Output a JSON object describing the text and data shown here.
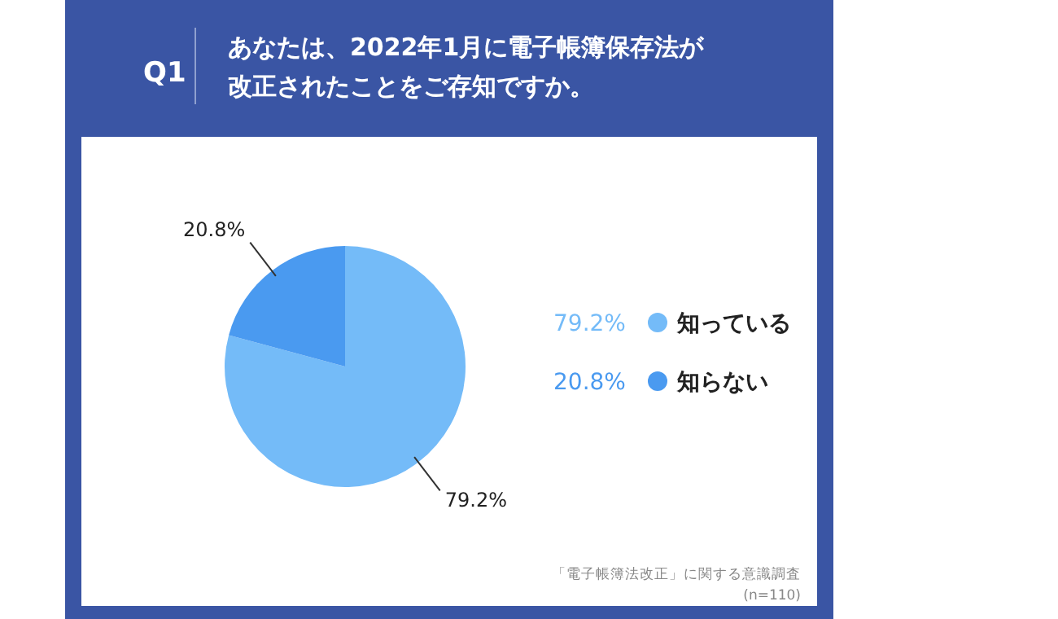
{
  "chart_data": {
    "type": "pie",
    "title": "Q1",
    "subtitle": "あなたは、2022年1月に電子帳簿保存法が改正されたことをご存知ですか。",
    "categories": [
      "知っている",
      "知らない"
    ],
    "values": [
      79.2,
      20.8
    ],
    "colors": [
      "#74bbf8",
      "#4a9af0"
    ],
    "value_labels": [
      "79.2%",
      "20.8%"
    ],
    "legend": "right",
    "annotations": [
      "「電子帳簿法改正」に関する意識調査",
      "(n=110)"
    ]
  }
}
